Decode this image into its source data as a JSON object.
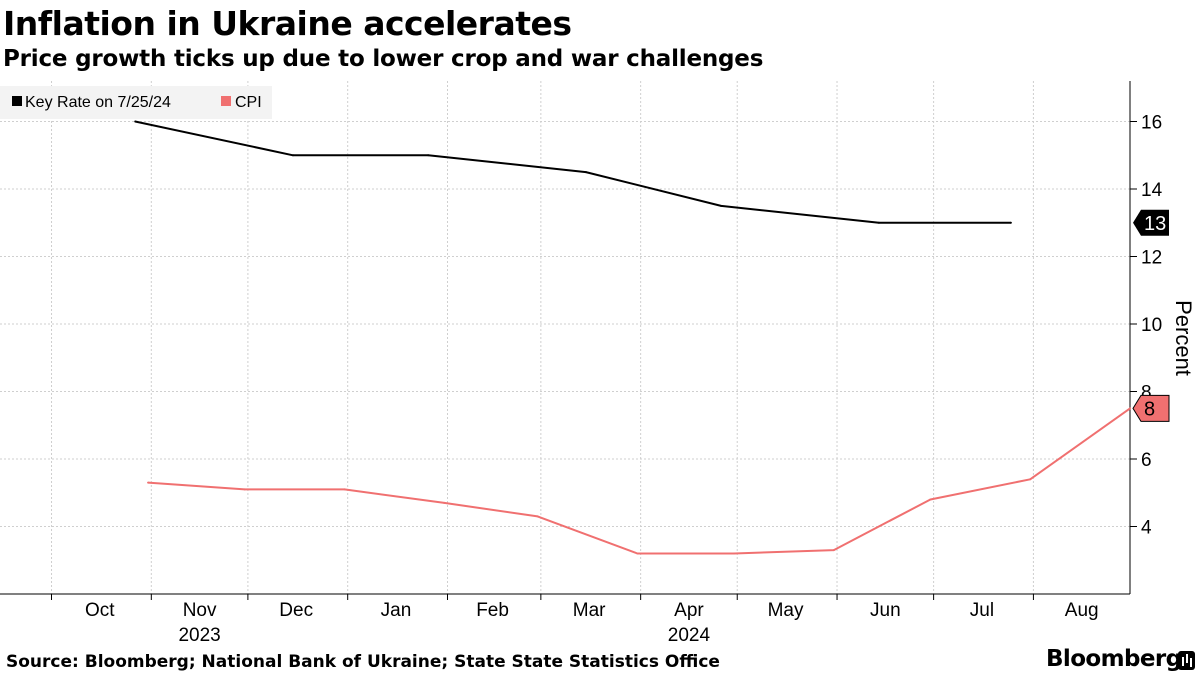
{
  "header": {
    "title": "Inflation in Ukraine accelerates",
    "subtitle": "Price growth ticks up due to lower crop and war challenges"
  },
  "footer": {
    "source": "Source: Bloomberg; National Bank of Ukraine; State State Statistics Office",
    "brand": "Bloomberg"
  },
  "chart_data": {
    "type": "line",
    "title": "Inflation in Ukraine accelerates",
    "subtitle": "Price growth ticks up due to lower crop and war challenges",
    "ylabel": "Percent",
    "xlabel": "",
    "ylim": [
      2,
      17.2
    ],
    "y_ticks": [
      4,
      6,
      8,
      10,
      12,
      14,
      16
    ],
    "x_range": [
      "2023-09-15",
      "2024-08-31"
    ],
    "x_tick_labels": [
      "Oct",
      "Nov",
      "Dec",
      "Jan",
      "Feb",
      "Mar",
      "Apr",
      "May",
      "Jun",
      "Jul",
      "Aug"
    ],
    "x_year_labels": [
      {
        "label": "2023",
        "month": "Nov"
      },
      {
        "label": "2024",
        "month": "Apr"
      }
    ],
    "grid": true,
    "legend_position": "top-left",
    "series": [
      {
        "name": "Key Rate on 7/25/24",
        "color": "#000000",
        "end_label": "13",
        "points": [
          {
            "x": "2023-10-27",
            "y": 16
          },
          {
            "x": "2023-12-15",
            "y": 15
          },
          {
            "x": "2024-01-26",
            "y": 15
          },
          {
            "x": "2024-03-15",
            "y": 14.5
          },
          {
            "x": "2024-04-26",
            "y": 13.5
          },
          {
            "x": "2024-06-14",
            "y": 13
          },
          {
            "x": "2024-07-25",
            "y": 13
          }
        ]
      },
      {
        "name": "CPI",
        "color": "#f07070",
        "end_label": "8",
        "points": [
          {
            "x": "2023-10-31",
            "y": 5.3
          },
          {
            "x": "2023-11-30",
            "y": 5.1
          },
          {
            "x": "2023-12-31",
            "y": 5.1
          },
          {
            "x": "2024-01-31",
            "y": 4.7
          },
          {
            "x": "2024-02-29",
            "y": 4.3
          },
          {
            "x": "2024-03-31",
            "y": 3.2
          },
          {
            "x": "2024-04-30",
            "y": 3.2
          },
          {
            "x": "2024-05-31",
            "y": 3.3
          },
          {
            "x": "2024-06-30",
            "y": 4.8
          },
          {
            "x": "2024-07-31",
            "y": 5.4
          },
          {
            "x": "2024-08-31",
            "y": 7.5
          }
        ]
      }
    ]
  }
}
